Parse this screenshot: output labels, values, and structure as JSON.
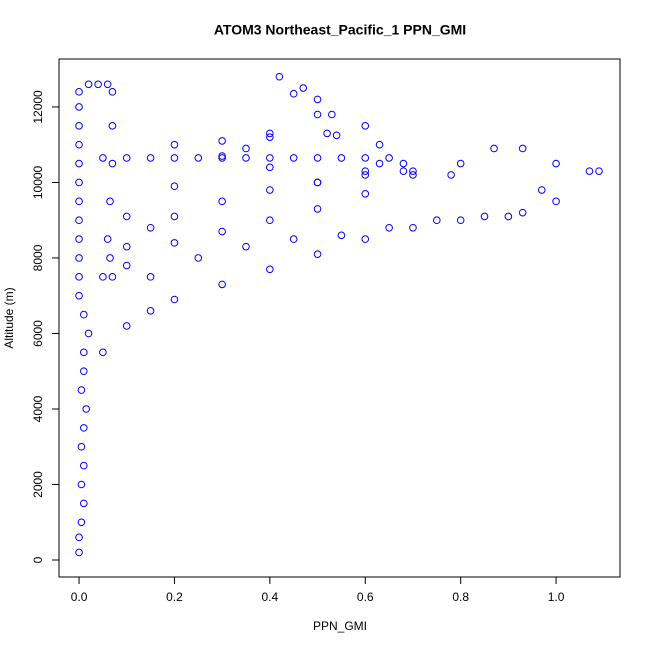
{
  "chart_data": {
    "type": "scatter",
    "title": "ATOM3 Northeast_Pacific_1 PPN_GMI",
    "x_label": "PPN_GMI",
    "y_label": "Altitude (m)",
    "color": "#0000ff",
    "xlim": [
      -0.042,
      1.134
    ],
    "ylim": [
      -450,
      13270
    ],
    "xticks": [
      {
        "value": 0,
        "label": "0.0"
      },
      0.2,
      0.4,
      0.6,
      0.8,
      {
        "value": 1,
        "label": "1.0"
      }
    ],
    "yticks": [
      0,
      2000,
      4000,
      6000,
      8000,
      10000,
      12000
    ],
    "x": [
      0,
      0,
      0.005,
      0.01,
      0.005,
      0.01,
      0.005,
      0.01,
      0.015,
      0.005,
      0.01,
      0.01,
      0.02,
      0.01,
      0,
      0,
      0,
      0,
      0,
      0,
      0,
      0,
      0,
      0,
      0,
      0,
      0.05,
      0.1,
      0.15,
      0.2,
      0.25,
      0.3,
      0.35,
      0.4,
      0.45,
      0.5,
      0.55,
      0.6,
      0.65,
      0.68,
      0.02,
      0.04,
      0.06,
      0.07,
      0.07,
      0.07,
      0.065,
      0.06,
      0.065,
      0.07,
      0.05,
      0.1,
      0.15,
      0.2,
      0.3,
      0.4,
      0.5,
      0.6,
      0.7,
      0.8,
      0.9,
      1.0,
      1.09,
      0.05,
      0.1,
      0.15,
      0.2,
      0.3,
      0.4,
      0.5,
      0.6,
      0.7,
      0.8,
      0.87,
      0.93,
      1.0,
      1.07,
      0.1,
      0.2,
      0.3,
      0.4,
      0.5,
      0.6,
      0.68,
      0.15,
      0.25,
      0.35,
      0.45,
      0.55,
      0.65,
      0.75,
      0.85,
      0.93,
      0.97,
      0.2,
      0.3,
      0.4,
      0.54,
      0.35,
      0.4,
      0.5,
      0.6,
      0.42,
      0.47,
      0.45,
      0.5,
      0.53,
      0.52,
      0.1,
      0.2,
      0.3,
      0.4,
      0.5,
      0.6,
      0.63,
      0.63,
      0.7,
      0.78
    ],
    "values": [
      200,
      600,
      1000,
      1500,
      2000,
      2500,
      3000,
      3500,
      4000,
      4500,
      5000,
      5500,
      6000,
      6500,
      7000,
      7500,
      8000,
      8500,
      9000,
      9500,
      10000,
      10500,
      11000,
      11500,
      12000,
      12400,
      10650,
      10650,
      10650,
      10650,
      10650,
      10650,
      10650,
      10650,
      10650,
      10650,
      10650,
      10650,
      10650,
      10500,
      12600,
      12600,
      12600,
      12400,
      11500,
      10500,
      9500,
      8500,
      8000,
      7500,
      5500,
      6200,
      6600,
      6900,
      7300,
      7700,
      8100,
      8500,
      8800,
      9000,
      9100,
      9500,
      10300,
      7500,
      8300,
      8800,
      9100,
      9500,
      9800,
      10000,
      10200,
      10300,
      10500,
      10900,
      10900,
      10500,
      10300,
      7800,
      8400,
      8700,
      9000,
      9300,
      9700,
      10300,
      7500,
      8000,
      8300,
      8500,
      8600,
      8800,
      9000,
      9100,
      9200,
      9800,
      11000,
      11100,
      11200,
      11250,
      10900,
      10400,
      10000,
      10300,
      12800,
      12500,
      12350,
      12200,
      11800,
      11300,
      9100,
      9900,
      10700,
      11300,
      11800,
      11500,
      11000,
      10500,
      10200,
      10200
    ]
  }
}
